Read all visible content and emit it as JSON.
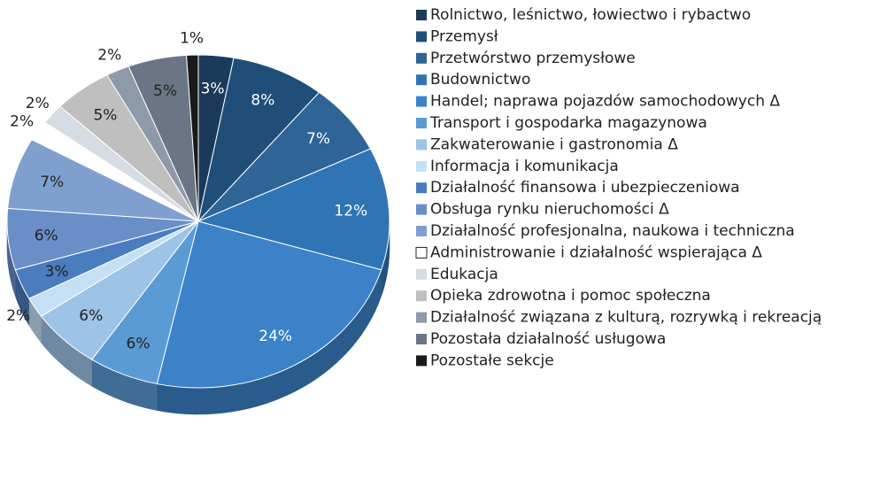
{
  "chart_data": {
    "type": "pie",
    "categories": [
      "Rolnictwo, leśnictwo, łowiectwo i rybactwo",
      "Przemysł",
      "Przetwórstwo przemysłowe",
      "Budownictwo",
      "Handel; naprawa pojazdów samochodowych Δ",
      "Transport i gospodarka magazynowa",
      "Zakwaterowanie i gastronomia Δ",
      "Informacja i komunikacja",
      "Działalność finansowa i ubezpieczeniowa",
      "Obsługa rynku nieruchomości Δ",
      "Działalność profesjonalna, naukowa i techniczna",
      "Administrowanie i działalność wspierająca Δ",
      "Edukacja",
      "Opieka zdrowotna i pomoc społeczna",
      "Działalność związana z kulturą, rozrywką i rekreacją",
      "Pozostała działalność usługowa",
      "Pozostałe sekcje"
    ],
    "values": [
      3,
      8,
      7,
      12,
      24,
      6,
      6,
      2,
      3,
      6,
      7,
      2,
      2,
      5,
      2,
      5,
      1
    ],
    "value_labels": [
      "3%",
      "8%",
      "7%",
      "12%",
      "24%",
      "6%",
      "6%",
      "2%",
      "3%",
      "6%",
      "7%",
      "2%",
      "2%",
      "5%",
      "2%",
      "5%",
      "1%"
    ],
    "colors": [
      "#1b3a5a",
      "#1f4e79",
      "#2e6496",
      "#2f75b5",
      "#3b82c8",
      "#5b9bd5",
      "#9dc3e6",
      "#c5e0f4",
      "#4a7cc0",
      "#6a8fc8",
      "#7f9fcf",
      "#ffffff",
      "#d6dce4",
      "#bfbfbf",
      "#8e9aaa",
      "#6b7585",
      "#1a1a1a"
    ]
  }
}
